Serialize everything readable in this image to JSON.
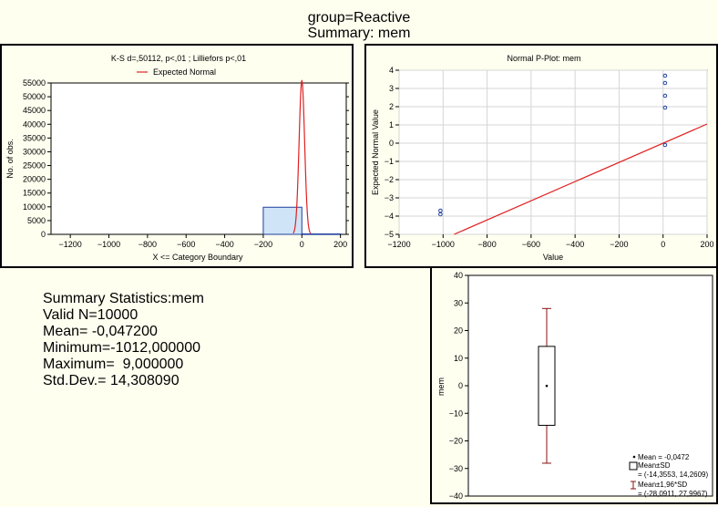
{
  "page": {
    "title_line1": "group=Reactive",
    "title_line2": "Summary: mem"
  },
  "histogram": {
    "title": "K-S d=,50112, p<,01 ; Lilliefors p<,01",
    "legend": "Expected Normal",
    "xlabel": "X <= Category Boundary",
    "ylabel": "No. of obs.",
    "colors": {
      "bar_fill": "#cfe4f7",
      "bar_stroke": "#1f3f9f",
      "curve": "#e02020"
    }
  },
  "ppplot": {
    "title": "Normal P-Plot: mem",
    "xlabel": "Value",
    "ylabel": "Expected Normal Value",
    "colors": {
      "points": "#1f3f9f",
      "line": "#e02020"
    }
  },
  "stats": {
    "heading": "Summary Statistics:mem",
    "valid_n": "Valid N=10000",
    "mean": "Mean= -0,047200",
    "minimum": "Minimum=-1012,000000",
    "maximum": "Maximum=  9,000000",
    "std_dev": "Std.Dev.= 14,308090"
  },
  "boxplot": {
    "ylabel": "mem",
    "legend_mean": "Mean = -0,0472",
    "legend_box": "Mean±SD",
    "legend_box_values": "= (-14,3553, 14,2609)",
    "legend_whisker": "Mean±1,96*SD",
    "legend_whisker_values": "= (-28,0911, 27,9967)",
    "colors": {
      "box_stroke": "#000000",
      "whisker": "#8b1010"
    }
  },
  "chart_data": [
    {
      "type": "bar",
      "title": "K-S d=,50112, p<,01 ; Lilliefors p<,01",
      "xlabel": "X <= Category Boundary",
      "ylabel": "No. of obs.",
      "x_ticks": [
        -1200,
        -1000,
        -800,
        -600,
        -400,
        -200,
        0,
        200
      ],
      "y_ticks": [
        0,
        5000,
        10000,
        15000,
        20000,
        25000,
        30000,
        35000,
        40000,
        45000,
        50000,
        55000
      ],
      "xlim": [
        -1300,
        230
      ],
      "ylim": [
        0,
        55000
      ],
      "bins": [
        {
          "from": -200,
          "to": 0,
          "value": 9850
        },
        {
          "from": 0,
          "to": 200,
          "value": 150
        }
      ],
      "series": [
        {
          "name": "Expected Normal",
          "type": "line",
          "mean": -0.0472,
          "sd": 14.30809,
          "peak": 55800
        }
      ]
    },
    {
      "type": "scatter",
      "title": "Normal P-Plot: mem",
      "xlabel": "Value",
      "ylabel": "Expected Normal Value",
      "x_ticks": [
        -1200,
        -1000,
        -800,
        -600,
        -400,
        -200,
        0,
        200
      ],
      "y_ticks": [
        -5,
        -4,
        -3,
        -2,
        -1,
        0,
        1,
        2,
        3,
        4
      ],
      "xlim": [
        -1200,
        200
      ],
      "ylim": [
        -5,
        4
      ],
      "points": [
        {
          "x": -1012,
          "y": -3.9
        },
        {
          "x": -1012,
          "y": -3.7
        },
        {
          "x": 9,
          "y": 3.7
        },
        {
          "x": 9,
          "y": 3.3
        },
        {
          "x": 9,
          "y": 2.6
        },
        {
          "x": 9,
          "y": 1.95
        },
        {
          "x": 9,
          "y": -0.1
        }
      ],
      "reference_line": {
        "x": [
          -950,
          200
        ],
        "y": [
          -5,
          1.05
        ]
      }
    },
    {
      "type": "box",
      "ylabel": "mem",
      "y_ticks": [
        -40,
        -30,
        -20,
        -10,
        0,
        10,
        20,
        30,
        40
      ],
      "ylim": [
        -40,
        40
      ],
      "mean": -0.0472,
      "box": [
        -14.3553,
        14.2609
      ],
      "whiskers": [
        -28.0911,
        27.9967
      ]
    }
  ]
}
